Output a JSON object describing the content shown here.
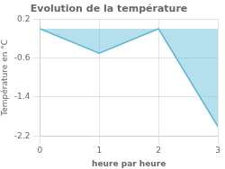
{
  "chart_data": {
    "type": "line",
    "title": "Evolution de la température",
    "xlabel": "heure par heure",
    "ylabel": "Température en °C",
    "x": [
      0,
      1,
      2,
      3
    ],
    "values": [
      0.0,
      -0.5,
      0.0,
      -2.0
    ],
    "color": "#5bb8d4",
    "xlim": [
      0,
      3
    ],
    "xticks": [
      0,
      1,
      2,
      3
    ],
    "ylim": [
      -2.2,
      0.2
    ],
    "yticks": [
      0.2,
      -0.6,
      -1.4,
      -2.2
    ],
    "grid": true
  }
}
